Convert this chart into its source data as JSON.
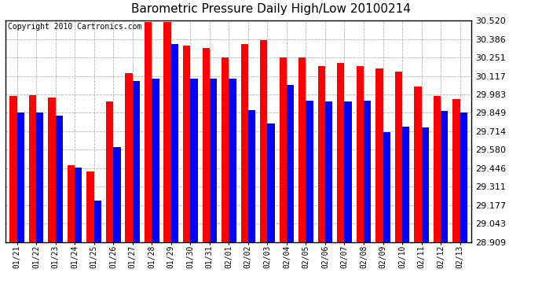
{
  "title": "Barometric Pressure Daily High/Low 20100214",
  "copyright": "Copyright 2010 Cartronics.com",
  "dates": [
    "01/21",
    "01/22",
    "01/23",
    "01/24",
    "01/25",
    "01/26",
    "01/27",
    "01/28",
    "01/29",
    "01/30",
    "01/31",
    "02/01",
    "02/02",
    "02/03",
    "02/04",
    "02/05",
    "02/06",
    "02/07",
    "02/08",
    "02/09",
    "02/10",
    "02/11",
    "02/12",
    "02/13"
  ],
  "highs": [
    29.97,
    29.98,
    29.96,
    29.47,
    29.42,
    29.93,
    30.14,
    30.51,
    30.51,
    30.34,
    30.32,
    30.25,
    30.35,
    30.38,
    30.25,
    30.25,
    30.19,
    30.21,
    30.19,
    30.17,
    30.15,
    30.04,
    29.97,
    29.95
  ],
  "lows": [
    29.85,
    29.85,
    29.83,
    29.45,
    29.21,
    29.6,
    30.08,
    30.1,
    30.35,
    30.1,
    30.1,
    30.1,
    29.87,
    29.77,
    30.05,
    29.94,
    29.93,
    29.93,
    29.94,
    29.71,
    29.75,
    29.74,
    29.86,
    29.85
  ],
  "ymin": 28.909,
  "ymax": 30.52,
  "yticks": [
    28.909,
    29.043,
    29.177,
    29.311,
    29.446,
    29.58,
    29.714,
    29.849,
    29.983,
    30.117,
    30.251,
    30.386,
    30.52
  ],
  "bar_width": 0.38,
  "high_color": "#ff0000",
  "low_color": "#0000ff",
  "bg_color": "#ffffff",
  "grid_color": "#b0b0b0",
  "title_fontsize": 11,
  "copyright_fontsize": 7
}
